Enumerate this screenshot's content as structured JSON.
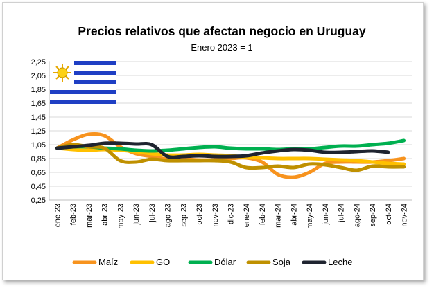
{
  "chart_data": {
    "type": "line",
    "title": "Precios relativos que afectan negocio en Uruguay",
    "subtitle": "Enero 2023 = 1",
    "xlabel": "",
    "ylabel": "",
    "ylim": [
      0.25,
      2.25
    ],
    "y_ticks": [
      "0,25",
      "0,45",
      "0,65",
      "0,85",
      "1,05",
      "1,25",
      "1,45",
      "1,65",
      "1,85",
      "2,05",
      "2,25"
    ],
    "categories": [
      "ene-23",
      "feb-23",
      "mar-23",
      "abr-23",
      "may-23",
      "jun-23",
      "jul-23",
      "ago-23",
      "sep-23",
      "oct-23",
      "nov-23",
      "dic-23",
      "ene-24",
      "feb-24",
      "mar-24",
      "abr-24",
      "may-24",
      "jun-24",
      "jul-24",
      "ago-24",
      "sep-24",
      "oct-24",
      "nov-24"
    ],
    "grid": true,
    "legend": "bottom",
    "series": [
      {
        "name": "Maíz",
        "color": "#f7931e",
        "values": [
          1.0,
          1.12,
          1.2,
          1.18,
          1.02,
          0.92,
          0.88,
          0.84,
          0.84,
          0.83,
          0.83,
          0.85,
          0.86,
          0.8,
          0.62,
          0.58,
          0.65,
          0.78,
          0.8,
          0.8,
          0.8,
          0.82,
          0.85
        ]
      },
      {
        "name": "GO",
        "color": "#ffc000",
        "values": [
          1.0,
          0.98,
          0.97,
          0.98,
          0.97,
          0.95,
          0.92,
          0.9,
          0.9,
          0.91,
          0.9,
          0.89,
          0.87,
          0.86,
          0.85,
          0.85,
          0.85,
          0.84,
          0.83,
          0.82,
          0.8,
          0.78,
          0.77
        ]
      },
      {
        "name": "Dólar",
        "color": "#00b050",
        "values": [
          1.0,
          1.02,
          1.02,
          1.0,
          0.99,
          0.97,
          0.96,
          0.97,
          0.99,
          1.01,
          1.02,
          1.0,
          0.99,
          0.99,
          0.98,
          0.99,
          0.99,
          1.01,
          1.03,
          1.03,
          1.05,
          1.07,
          1.11
        ]
      },
      {
        "name": "Soja",
        "color": "#bf9000",
        "values": [
          1.0,
          1.05,
          1.02,
          1.0,
          0.82,
          0.8,
          0.84,
          0.82,
          0.82,
          0.82,
          0.82,
          0.8,
          0.72,
          0.72,
          0.74,
          0.72,
          0.77,
          0.76,
          0.72,
          0.68,
          0.74,
          0.73,
          0.73
        ]
      },
      {
        "name": "Leche",
        "color": "#1f2430",
        "values": [
          1.0,
          1.02,
          1.04,
          1.07,
          1.07,
          1.06,
          1.05,
          0.88,
          0.88,
          0.89,
          0.88,
          0.88,
          0.89,
          0.93,
          0.96,
          0.98,
          0.97,
          0.94,
          0.94,
          0.95,
          0.96,
          0.94,
          null
        ]
      }
    ],
    "icons": [
      "uruguay-flag-icon"
    ]
  }
}
